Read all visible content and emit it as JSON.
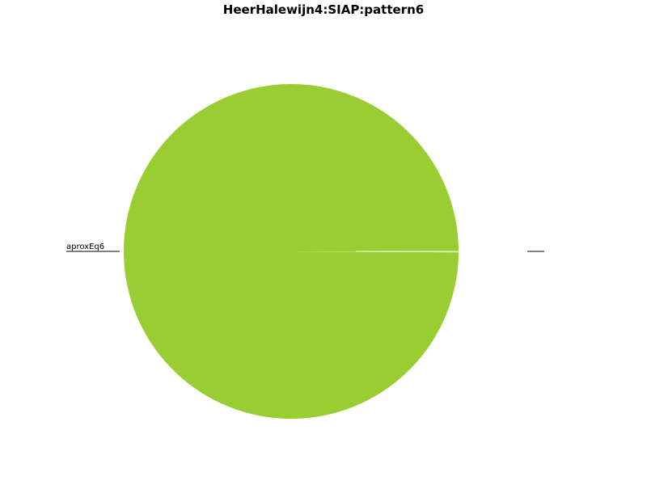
{
  "chart_data": {
    "type": "pie",
    "title": "HeerHalewijn4:SIAP:pattern6",
    "slices": [
      {
        "label": "aproxEq6",
        "value": 99.9,
        "color": "#9acd32"
      },
      {
        "label": "",
        "value": 0.1,
        "color": "#d0e6a0"
      }
    ],
    "legend": "none"
  }
}
